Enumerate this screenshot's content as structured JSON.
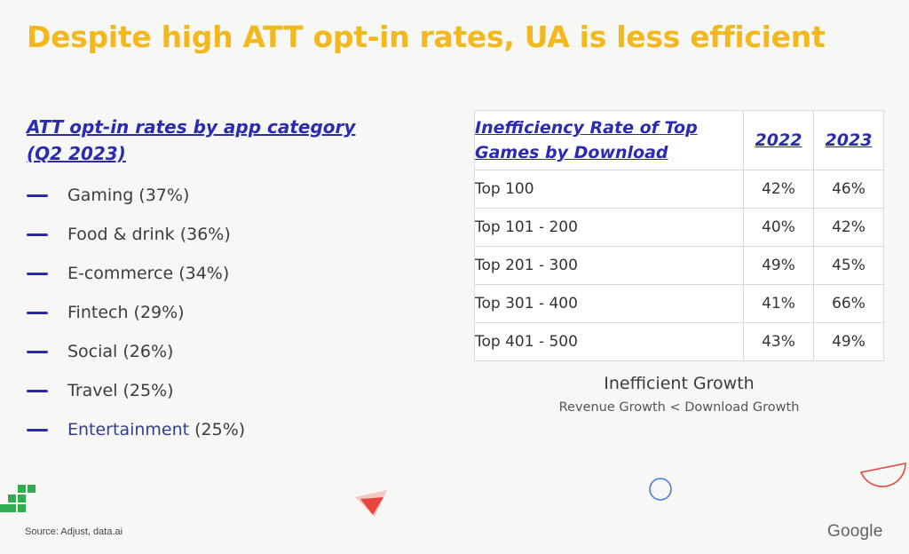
{
  "title": "Despite high ATT opt-in rates, UA is less efficient",
  "left": {
    "heading": "ATT opt-in rates by app category (Q2 2023)",
    "items": [
      {
        "label": "Gaming (37%)"
      },
      {
        "label": "Food & drink (36%)"
      },
      {
        "label": "E-commerce (34%)"
      },
      {
        "label": "Fintech (29%)"
      },
      {
        "label": "Social (26%)"
      },
      {
        "label": "Travel (25%)"
      },
      {
        "label_main": "Entertainment",
        "label_pct": " (25%)"
      }
    ]
  },
  "table": {
    "header": "Inefficiency Rate of Top Games by Download",
    "years": [
      "2022",
      "2023"
    ],
    "rows": [
      {
        "cat": "Top 100",
        "v2022": "42%",
        "v2023": "46%"
      },
      {
        "cat": "Top 101 - 200",
        "v2022": "40%",
        "v2023": "42%"
      },
      {
        "cat": "Top 201 - 300",
        "v2022": "49%",
        "v2023": "45%"
      },
      {
        "cat": "Top 301 - 400",
        "v2022": "41%",
        "v2023": "66%"
      },
      {
        "cat": "Top 401 - 500",
        "v2022": "43%",
        "v2023": "49%"
      }
    ]
  },
  "caption": {
    "title": "Inefficient Growth",
    "subtitle": "Revenue Growth < Download Growth"
  },
  "footer": {
    "source": "Source: Adjust, data.ai",
    "brand": "Google"
  },
  "colors": {
    "title": "#f4b81f",
    "accent_blue": "#2a2cb0",
    "deco_red": "#e8453c",
    "deco_green": "#2fae4f",
    "deco_blue": "#4a7bd9"
  }
}
